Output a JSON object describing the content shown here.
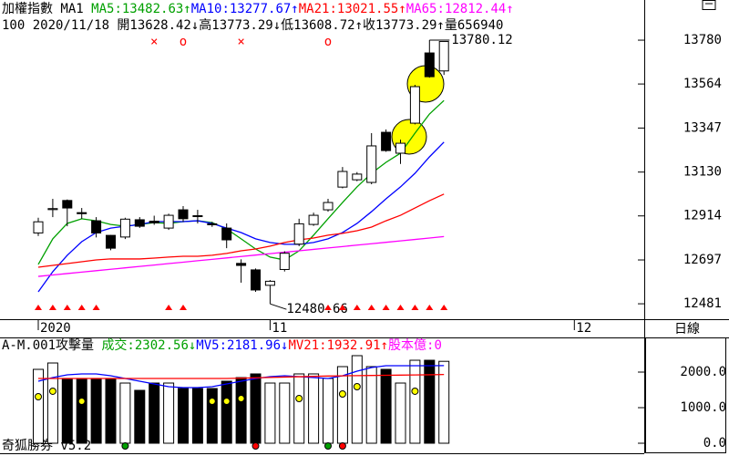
{
  "app_label": "奇狐勝券 v5.2",
  "period_button": "日線",
  "chart_data": [
    {
      "type": "candlestick",
      "header_items": [
        {
          "text": "加權指數 MA1 ",
          "color": "#000000"
        },
        {
          "text": "MA5:13482.63↑",
          "color": "#00a000"
        },
        {
          "text": "MA10:13277.67↑",
          "color": "#0000ff"
        },
        {
          "text": "MA21:13021.55↑",
          "color": "#ff0000"
        },
        {
          "text": "MA65:12812.44↑",
          "color": "#ff00ff"
        }
      ],
      "info": "100 2020/11/18 開13628.42↓高13773.29↓低13608.72↑收13773.29↑量656940",
      "open": [
        12830,
        12945,
        12990,
        12930,
        12890,
        12818,
        12810,
        12895,
        12888,
        12854,
        12944,
        12915,
        12875,
        12854,
        12680,
        12648,
        12572,
        12650,
        12775,
        12872,
        12944,
        13056,
        13092,
        13079,
        13326,
        13223,
        13371,
        13717,
        13628.42
      ],
      "high": [
        12905,
        12998,
        12995,
        12953,
        12908,
        12820,
        12905,
        12908,
        12915,
        12925,
        12962,
        12944,
        12885,
        12877,
        12700,
        12655,
        12598,
        12740,
        12900,
        12930,
        12998,
        13155,
        13130,
        13322,
        13340,
        13290,
        13560,
        13780.12,
        13773.29
      ],
      "low": [
        12815,
        12908,
        12863,
        12900,
        12808,
        12745,
        12800,
        12855,
        12870,
        12845,
        12885,
        12877,
        12860,
        12755,
        12585,
        12540,
        12480.66,
        12640,
        12765,
        12865,
        12935,
        13050,
        13085,
        13070,
        13230,
        13170,
        13365,
        13595,
        13608.72
      ],
      "close": [
        12885,
        12950,
        12953,
        12925,
        12830,
        12755,
        12898,
        12863,
        12880,
        12917,
        12900,
        12912,
        12872,
        12796,
        12670,
        12549,
        12592,
        12730,
        12875,
        12917,
        12980,
        13133,
        13120,
        13259,
        13236,
        13272,
        13551,
        13600,
        13773.29
      ],
      "series": [
        {
          "name": "MA5",
          "color": "#00a000",
          "values": [
            12675,
            12801,
            12877,
            12900,
            12890,
            12872,
            12863,
            12872,
            12881,
            12877,
            12886,
            12890,
            12881,
            12850,
            12801,
            12751,
            12711,
            12697,
            12742,
            12819,
            12900,
            12980,
            13057,
            13124,
            13178,
            13223,
            13322,
            13416,
            13482.63
          ]
        },
        {
          "name": "MA10",
          "color": "#0000ff",
          "values": [
            12540,
            12639,
            12720,
            12787,
            12832,
            12854,
            12863,
            12872,
            12886,
            12886,
            12886,
            12890,
            12877,
            12854,
            12832,
            12801,
            12783,
            12774,
            12774,
            12783,
            12801,
            12832,
            12877,
            12935,
            12998,
            13057,
            13124,
            13205,
            13277.67
          ]
        },
        {
          "name": "MA21",
          "color": "#ff0000",
          "values": [
            12661,
            12670,
            12679,
            12688,
            12697,
            12702,
            12702,
            12702,
            12706,
            12711,
            12715,
            12715,
            12720,
            12729,
            12742,
            12751,
            12765,
            12783,
            12796,
            12805,
            12819,
            12828,
            12841,
            12859,
            12890,
            12917,
            12953,
            12989,
            13021.55
          ]
        },
        {
          "name": "MA65",
          "color": "#ff00ff",
          "values": [
            12616,
            12623,
            12630,
            12637,
            12644,
            12651,
            12658,
            12665,
            12672,
            12679,
            12686,
            12693,
            12700,
            12707,
            12714,
            12721,
            12728,
            12735,
            12742,
            12749,
            12756,
            12763,
            12770,
            12777,
            12784,
            12791,
            12798,
            12805,
            12812.44
          ]
        }
      ],
      "up_color": "#ffffff",
      "down_color": "#000000",
      "high_label_index": 27,
      "low_label_index": 16,
      "top_markers": [
        {
          "index": 8,
          "symbol": "×"
        },
        {
          "index": 10,
          "symbol": "o"
        },
        {
          "index": 14,
          "symbol": "×"
        },
        {
          "index": 20,
          "symbol": "o"
        }
      ],
      "marker_color": "#ff0000",
      "up_signals": [
        0,
        1,
        2,
        3,
        4,
        9,
        10,
        20,
        21,
        22,
        23,
        24,
        25,
        26,
        27,
        28
      ],
      "x_labels": [
        {
          "index": 0,
          "label": "2020"
        },
        {
          "index": 16,
          "label": "11"
        },
        {
          "index": 37,
          "label": "12"
        }
      ],
      "ylim": [
        12405,
        13915
      ],
      "yticks": [
        13780,
        13564,
        13347,
        13130,
        12914,
        12697,
        12481
      ]
    },
    {
      "type": "bar",
      "header_items": [
        {
          "text": "A-M.001攻擊量 ",
          "color": "#000000"
        },
        {
          "text": "成交:2302.56↓",
          "color": "#00a000"
        },
        {
          "text": "MV5:2181.96↓",
          "color": "#0000ff"
        },
        {
          "text": "MV21:1932.91↑",
          "color": "#ff0000"
        },
        {
          "text": "股本億:0",
          "color": "#ff00ff"
        }
      ],
      "values": [
        2077,
        2256,
        1821,
        1821,
        1821,
        1821,
        1692,
        1487,
        1692,
        1692,
        1538,
        1538,
        1538,
        1744,
        1846,
        1949,
        1692,
        1692,
        1949,
        1949,
        1821,
        2154,
        2462,
        2154,
        2077,
        1692,
        2333,
        2333,
        2302.56
      ],
      "series": [
        {
          "name": "MV5",
          "color": "#0000ff",
          "values": [
            1744,
            1846,
            1923,
            1949,
            1949,
            1897,
            1821,
            1744,
            1667,
            1590,
            1564,
            1564,
            1590,
            1667,
            1744,
            1821,
            1872,
            1897,
            1872,
            1846,
            1821,
            1897,
            2026,
            2128,
            2179,
            2179,
            2179,
            2179,
            2181.96
          ]
        },
        {
          "name": "MV21",
          "color": "#ff0000",
          "values": [
            1821,
            1821,
            1821,
            1821,
            1821,
            1821,
            1821,
            1821,
            1821,
            1821,
            1821,
            1821,
            1821,
            1821,
            1830,
            1840,
            1850,
            1860,
            1870,
            1880,
            1890,
            1895,
            1900,
            1905,
            1910,
            1915,
            1920,
            1925,
            1932.91
          ]
        }
      ],
      "dots": [
        {
          "index": 0,
          "value": 1308
        },
        {
          "index": 1,
          "value": 1462
        },
        {
          "index": 3,
          "value": 1179
        },
        {
          "index": 12,
          "value": 1179
        },
        {
          "index": 13,
          "value": 1179
        },
        {
          "index": 14,
          "value": 1256
        },
        {
          "index": 18,
          "value": 1256
        },
        {
          "index": 21,
          "value": 1385
        },
        {
          "index": 22,
          "value": 1590
        },
        {
          "index": 26,
          "value": 1462
        }
      ],
      "dot_color": "#ffff00",
      "green_signals": [
        6,
        20
      ],
      "red_signals": [
        15,
        21
      ],
      "ylim": [
        -282,
        2923
      ],
      "yticks": [
        {
          "value": 2000,
          "label": "2000.0"
        },
        {
          "value": 1000,
          "label": "1000.0"
        },
        {
          "value": 0,
          "label": "0.0"
        }
      ]
    }
  ]
}
